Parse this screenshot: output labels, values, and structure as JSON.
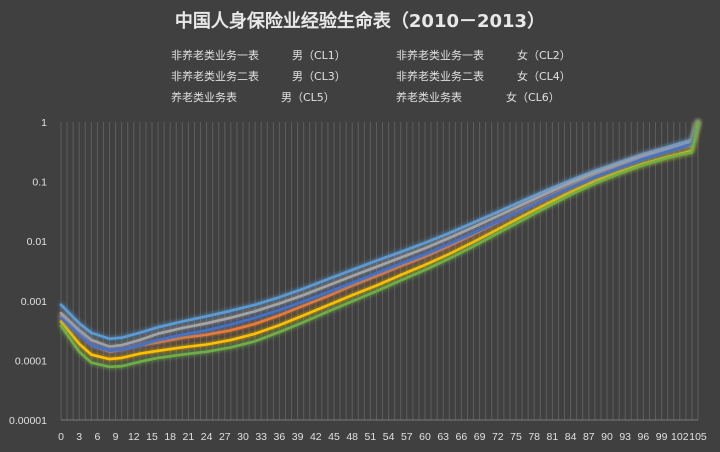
{
  "chart_data": {
    "type": "line",
    "title": "中国人身保险业经验生命表（2010－2013）",
    "xlabel": "",
    "ylabel": "",
    "y_scale": "log",
    "ylim": [
      1e-05,
      1
    ],
    "xlim": [
      0,
      105
    ],
    "grid": {
      "vertical": true,
      "horizontal": false
    },
    "legend_position": "top",
    "x_ticks": [
      0,
      3,
      6,
      9,
      12,
      15,
      18,
      21,
      24,
      27,
      30,
      33,
      36,
      39,
      42,
      45,
      48,
      51,
      54,
      57,
      60,
      63,
      66,
      69,
      72,
      75,
      78,
      81,
      84,
      87,
      90,
      93,
      96,
      99,
      102,
      105
    ],
    "y_ticks": [
      {
        "value": 1e-05,
        "label": "0.00001"
      },
      {
        "value": 0.0001,
        "label": "0.0001"
      },
      {
        "value": 0.001,
        "label": "0.001"
      },
      {
        "value": 0.01,
        "label": "0.01"
      },
      {
        "value": 0.1,
        "label": "0.1"
      },
      {
        "value": 1,
        "label": "1"
      }
    ],
    "series": [
      {
        "name": "非养老类业务一表　　　男（CL1）",
        "color": "#5b9bd5",
        "points": [
          [
            0,
            0.00086
          ],
          [
            3,
            0.00042
          ],
          [
            5,
            0.00029
          ],
          [
            8,
            0.00023
          ],
          [
            10,
            0.00024
          ],
          [
            13,
            0.00029
          ],
          [
            16,
            0.00036
          ],
          [
            20,
            0.00045
          ],
          [
            24,
            0.00055
          ],
          [
            28,
            0.00068
          ],
          [
            32,
            0.00086
          ],
          [
            36,
            0.00115
          ],
          [
            40,
            0.0016
          ],
          [
            44,
            0.0023
          ],
          [
            48,
            0.0033
          ],
          [
            52,
            0.0047
          ],
          [
            56,
            0.0066
          ],
          [
            60,
            0.0094
          ],
          [
            64,
            0.0137
          ],
          [
            68,
            0.0205
          ],
          [
            72,
            0.031
          ],
          [
            76,
            0.047
          ],
          [
            80,
            0.071
          ],
          [
            84,
            0.105
          ],
          [
            88,
            0.152
          ],
          [
            92,
            0.21
          ],
          [
            96,
            0.29
          ],
          [
            100,
            0.38
          ],
          [
            102,
            0.44
          ],
          [
            104,
            0.5
          ],
          [
            105,
            1.0
          ]
        ]
      },
      {
        "name": "非养老类业务一表　　　女（CL2）",
        "color": "#ed7d31",
        "points": [
          [
            0,
            0.00055
          ],
          [
            3,
            0.00028
          ],
          [
            5,
            0.00018
          ],
          [
            8,
            0.00014
          ],
          [
            10,
            0.00015
          ],
          [
            13,
            0.00018
          ],
          [
            16,
            0.0002
          ],
          [
            20,
            0.00024
          ],
          [
            24,
            0.00027
          ],
          [
            28,
            0.00032
          ],
          [
            32,
            0.00041
          ],
          [
            36,
            0.00057
          ],
          [
            40,
            0.00083
          ],
          [
            44,
            0.0012
          ],
          [
            48,
            0.0018
          ],
          [
            52,
            0.0026
          ],
          [
            56,
            0.0038
          ],
          [
            60,
            0.0055
          ],
          [
            64,
            0.0083
          ],
          [
            68,
            0.013
          ],
          [
            72,
            0.021
          ],
          [
            76,
            0.034
          ],
          [
            80,
            0.053
          ],
          [
            84,
            0.083
          ],
          [
            88,
            0.125
          ],
          [
            92,
            0.18
          ],
          [
            96,
            0.255
          ],
          [
            100,
            0.33
          ],
          [
            102,
            0.37
          ],
          [
            104,
            0.42
          ],
          [
            105,
            1.0
          ]
        ]
      },
      {
        "name": "非养老类业务二表　　　男（CL3）",
        "color": "#a5a5a5",
        "points": [
          [
            0,
            0.00062
          ],
          [
            3,
            0.00032
          ],
          [
            5,
            0.00022
          ],
          [
            8,
            0.00017
          ],
          [
            10,
            0.00018
          ],
          [
            13,
            0.00022
          ],
          [
            16,
            0.00028
          ],
          [
            20,
            0.00035
          ],
          [
            24,
            0.00042
          ],
          [
            28,
            0.00052
          ],
          [
            32,
            0.00067
          ],
          [
            36,
            0.0009
          ],
          [
            40,
            0.00125
          ],
          [
            44,
            0.0018
          ],
          [
            48,
            0.0026
          ],
          [
            52,
            0.0037
          ],
          [
            56,
            0.0053
          ],
          [
            60,
            0.0076
          ],
          [
            64,
            0.0113
          ],
          [
            68,
            0.0172
          ],
          [
            72,
            0.0265
          ],
          [
            76,
            0.041
          ],
          [
            80,
            0.063
          ],
          [
            84,
            0.095
          ],
          [
            88,
            0.14
          ],
          [
            92,
            0.195
          ],
          [
            96,
            0.27
          ],
          [
            100,
            0.35
          ],
          [
            102,
            0.4
          ],
          [
            104,
            0.46
          ],
          [
            105,
            1.0
          ]
        ]
      },
      {
        "name": "非养老类业务二表　　　女（CL4）",
        "color": "#ffc000",
        "points": [
          [
            0,
            0.00045
          ],
          [
            3,
            0.00019
          ],
          [
            5,
            0.000125
          ],
          [
            8,
            0.000105
          ],
          [
            10,
            0.00011
          ],
          [
            13,
            0.00013
          ],
          [
            16,
            0.000145
          ],
          [
            20,
            0.000165
          ],
          [
            24,
            0.000185
          ],
          [
            28,
            0.00022
          ],
          [
            32,
            0.00028
          ],
          [
            36,
            0.00039
          ],
          [
            40,
            0.00057
          ],
          [
            44,
            0.00084
          ],
          [
            48,
            0.00124
          ],
          [
            52,
            0.0018
          ],
          [
            56,
            0.0027
          ],
          [
            60,
            0.004
          ],
          [
            64,
            0.0061
          ],
          [
            68,
            0.0097
          ],
          [
            72,
            0.0158
          ],
          [
            76,
            0.026
          ],
          [
            80,
            0.042
          ],
          [
            84,
            0.067
          ],
          [
            88,
            0.102
          ],
          [
            92,
            0.145
          ],
          [
            96,
            0.2
          ],
          [
            100,
            0.26
          ],
          [
            102,
            0.29
          ],
          [
            104,
            0.33
          ],
          [
            105,
            1.0
          ]
        ]
      },
      {
        "name": "养老类业务表　　　　男（CL5）",
        "color": "#4472c4",
        "points": [
          [
            0,
            0.00052
          ],
          [
            3,
            0.00027
          ],
          [
            5,
            0.00018
          ],
          [
            8,
            0.000145
          ],
          [
            10,
            0.000152
          ],
          [
            13,
            0.00018
          ],
          [
            16,
            0.00022
          ],
          [
            20,
            0.00027
          ],
          [
            24,
            0.00032
          ],
          [
            28,
            0.0004
          ],
          [
            32,
            0.00052
          ],
          [
            36,
            0.0007
          ],
          [
            40,
            0.00098
          ],
          [
            44,
            0.0014
          ],
          [
            48,
            0.002
          ],
          [
            52,
            0.0029
          ],
          [
            56,
            0.0042
          ],
          [
            60,
            0.006
          ],
          [
            64,
            0.009
          ],
          [
            68,
            0.0138
          ],
          [
            72,
            0.0213
          ],
          [
            76,
            0.033
          ],
          [
            80,
            0.052
          ],
          [
            84,
            0.08
          ],
          [
            88,
            0.12
          ],
          [
            92,
            0.17
          ],
          [
            96,
            0.24
          ],
          [
            100,
            0.32
          ],
          [
            102,
            0.37
          ],
          [
            104,
            0.43
          ],
          [
            105,
            1.0
          ]
        ]
      },
      {
        "name": "养老类业务表　　　　女（CL6）",
        "color": "#70ad47",
        "points": [
          [
            0,
            0.00038
          ],
          [
            3,
            0.00014
          ],
          [
            5,
            9.2e-05
          ],
          [
            8,
            7.8e-05
          ],
          [
            10,
            8e-05
          ],
          [
            13,
            9.5e-05
          ],
          [
            16,
            0.00011
          ],
          [
            20,
            0.000125
          ],
          [
            24,
            0.00014
          ],
          [
            28,
            0.000165
          ],
          [
            32,
            0.00021
          ],
          [
            36,
            0.0003
          ],
          [
            40,
            0.00044
          ],
          [
            44,
            0.00066
          ],
          [
            48,
            0.00098
          ],
          [
            52,
            0.00145
          ],
          [
            56,
            0.0022
          ],
          [
            60,
            0.0033
          ],
          [
            64,
            0.0051
          ],
          [
            68,
            0.0082
          ],
          [
            72,
            0.0136
          ],
          [
            76,
            0.0225
          ],
          [
            80,
            0.037
          ],
          [
            84,
            0.06
          ],
          [
            88,
            0.093
          ],
          [
            92,
            0.135
          ],
          [
            96,
            0.19
          ],
          [
            100,
            0.25
          ],
          [
            102,
            0.28
          ],
          [
            104,
            0.31
          ],
          [
            105,
            1.0
          ]
        ]
      }
    ]
  }
}
